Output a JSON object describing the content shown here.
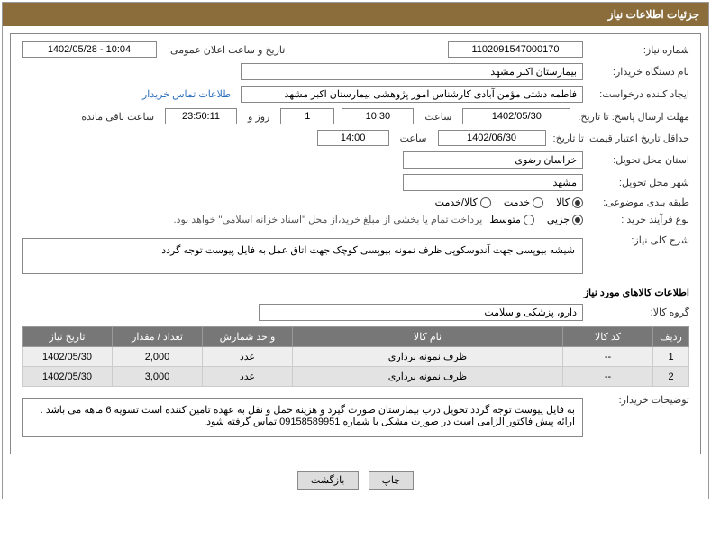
{
  "header": {
    "title": "جزئیات اطلاعات نیاز"
  },
  "details": {
    "request_no_label": "شماره نیاز:",
    "request_no": "1102091547000170",
    "announce_label": "تاریخ و ساعت اعلان عمومی:",
    "announce_value": "1402/05/28 - 10:04",
    "buyer_org_label": "نام دستگاه خریدار:",
    "buyer_org": "بیمارستان اکبر مشهد",
    "requester_label": "ایجاد کننده درخواست:",
    "requester": "فاطمه دشتی مؤمن آبادی کارشناس امور پژوهشی بیمارستان اکبر مشهد",
    "contact_link": "اطلاعات تماس خریدار",
    "deadline_label": "مهلت ارسال پاسخ: تا تاریخ:",
    "deadline_date": "1402/05/30",
    "time_word": "ساعت",
    "deadline_time": "10:30",
    "days_count": "1",
    "days_word": "روز و",
    "remain_time": "23:50:11",
    "remain_word": "ساعت باقی مانده",
    "validity_label": "حداقل تاریخ اعتبار قیمت: تا تاریخ:",
    "validity_date": "1402/06/30",
    "validity_time": "14:00",
    "province_label": "استان محل تحویل:",
    "province": "خراسان رضوی",
    "city_label": "شهر محل تحویل:",
    "city": "مشهد",
    "category_label": "طبقه بندی موضوعی:",
    "cat_goods": "کالا",
    "cat_service": "خدمت",
    "cat_both": "کالا/خدمت",
    "process_label": "نوع فرآیند خرید :",
    "proc_partial": "جزیی",
    "proc_medium": "متوسط",
    "process_note": "پرداخت تمام یا بخشی از مبلغ خرید،از محل \"اسناد خزانه اسلامی\" خواهد بود.",
    "desc_label": "شرح کلی نیاز:",
    "desc_text": "شیشه بیوپسی جهت آندوسکوپی      ظرف نمونه بیوپسی کوچک جهت اتاق عمل       به فایل پیوست توجه گردد",
    "items_section": "اطلاعات کالاهای مورد نیاز",
    "group_label": "گروه کالا:",
    "group_value": "دارو، پزشکی و سلامت",
    "buyer_notes_label": "توضیحات خریدار:",
    "buyer_notes": "به فایل پیوست توجه گردد تحویل درب بیمارستان صورت گیرد و هزینه حمل و نقل به عهده تامین کننده است تسویه 6 ماهه می باشد . ارائه پیش فاکتور الزامی است در صورت مشکل با شماره 09158589951 تماس گرفته شود."
  },
  "table": {
    "headers": {
      "row": "ردیف",
      "code": "کد کالا",
      "name": "نام کالا",
      "unit": "واحد شمارش",
      "qty": "تعداد / مقدار",
      "date": "تاریخ نیاز"
    },
    "rows": [
      {
        "idx": "1",
        "code": "--",
        "name": "ظرف نمونه برداری",
        "unit": "عدد",
        "qty": "2,000",
        "date": "1402/05/30"
      },
      {
        "idx": "2",
        "code": "--",
        "name": "ظرف نمونه برداری",
        "unit": "عدد",
        "qty": "3,000",
        "date": "1402/05/30"
      }
    ]
  },
  "buttons": {
    "print": "چاپ",
    "back": "بازگشت"
  }
}
